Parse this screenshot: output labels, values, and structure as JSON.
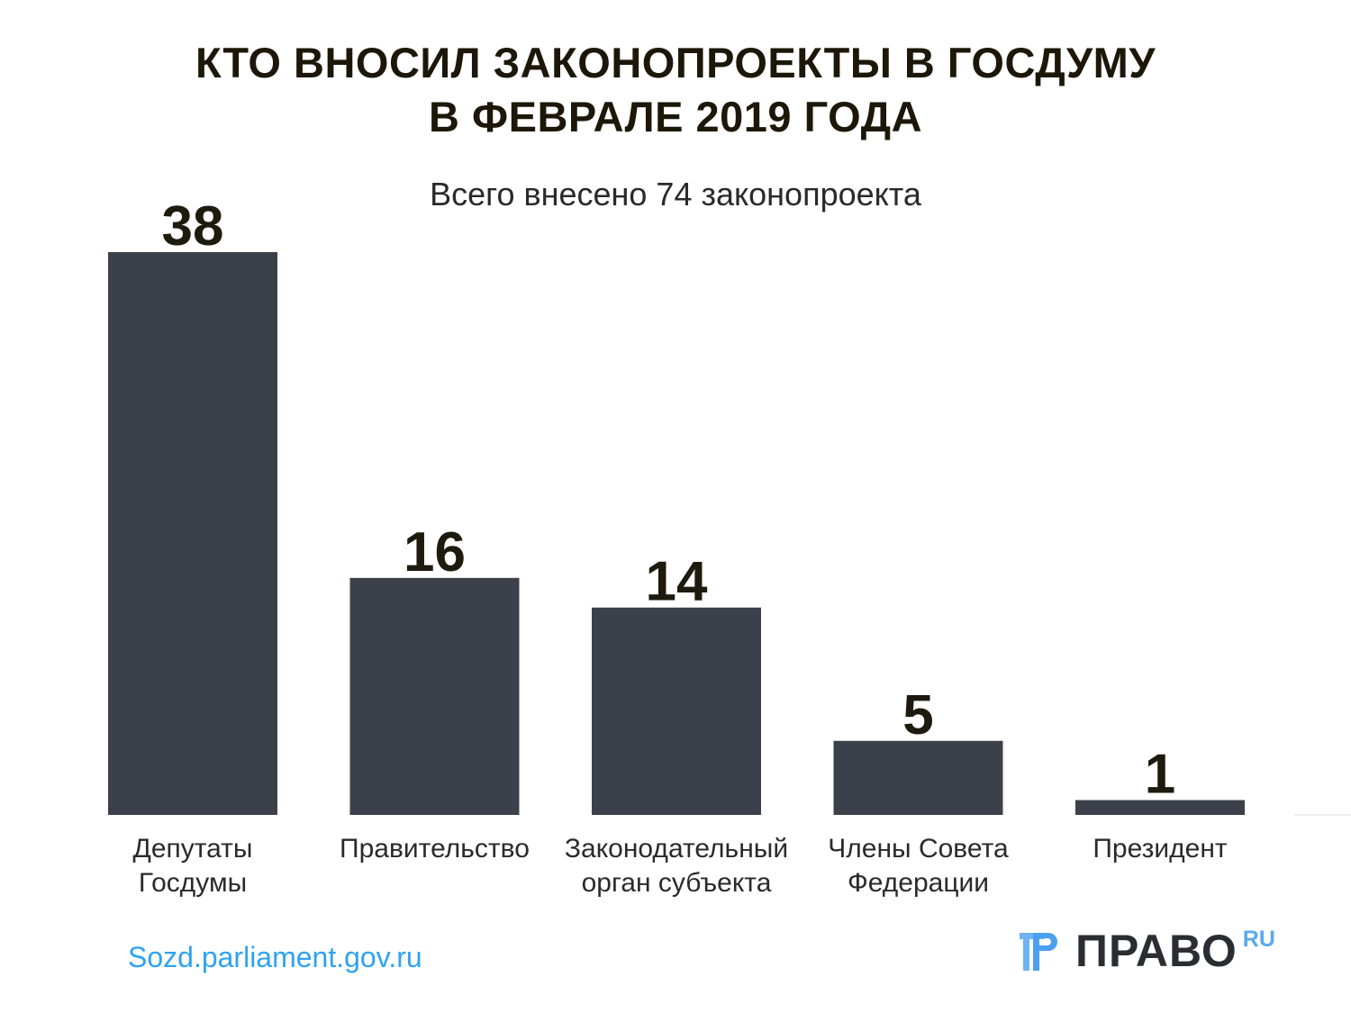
{
  "chart_data": {
    "type": "bar",
    "title": [
      "КТО ВНОСИЛ ЗАКОНОПРОЕКТЫ В ГОСДУМУ",
      "В ФЕВРАЛЕ 2019 ГОДА"
    ],
    "subtitle": "Всего внесено 74 законопроекта",
    "categories": [
      [
        "Депутаты",
        "Госдумы"
      ],
      [
        "Правительство"
      ],
      [
        "Законодательный",
        "орган субъекта"
      ],
      [
        "Члены Совета",
        "Федерации"
      ],
      [
        "Президент"
      ]
    ],
    "values": [
      38,
      16,
      14,
      5,
      1
    ],
    "xlabel": "",
    "ylabel": "",
    "ylim": [
      0,
      38
    ],
    "grid": false,
    "bar_color": "#3c404a",
    "label_color": "#1e1a0e"
  },
  "source": "Sozd.parliament.gov.ru",
  "logo": {
    "text": "ПРАВО",
    "suffix": "RU",
    "accent": "#5aa9f0"
  }
}
